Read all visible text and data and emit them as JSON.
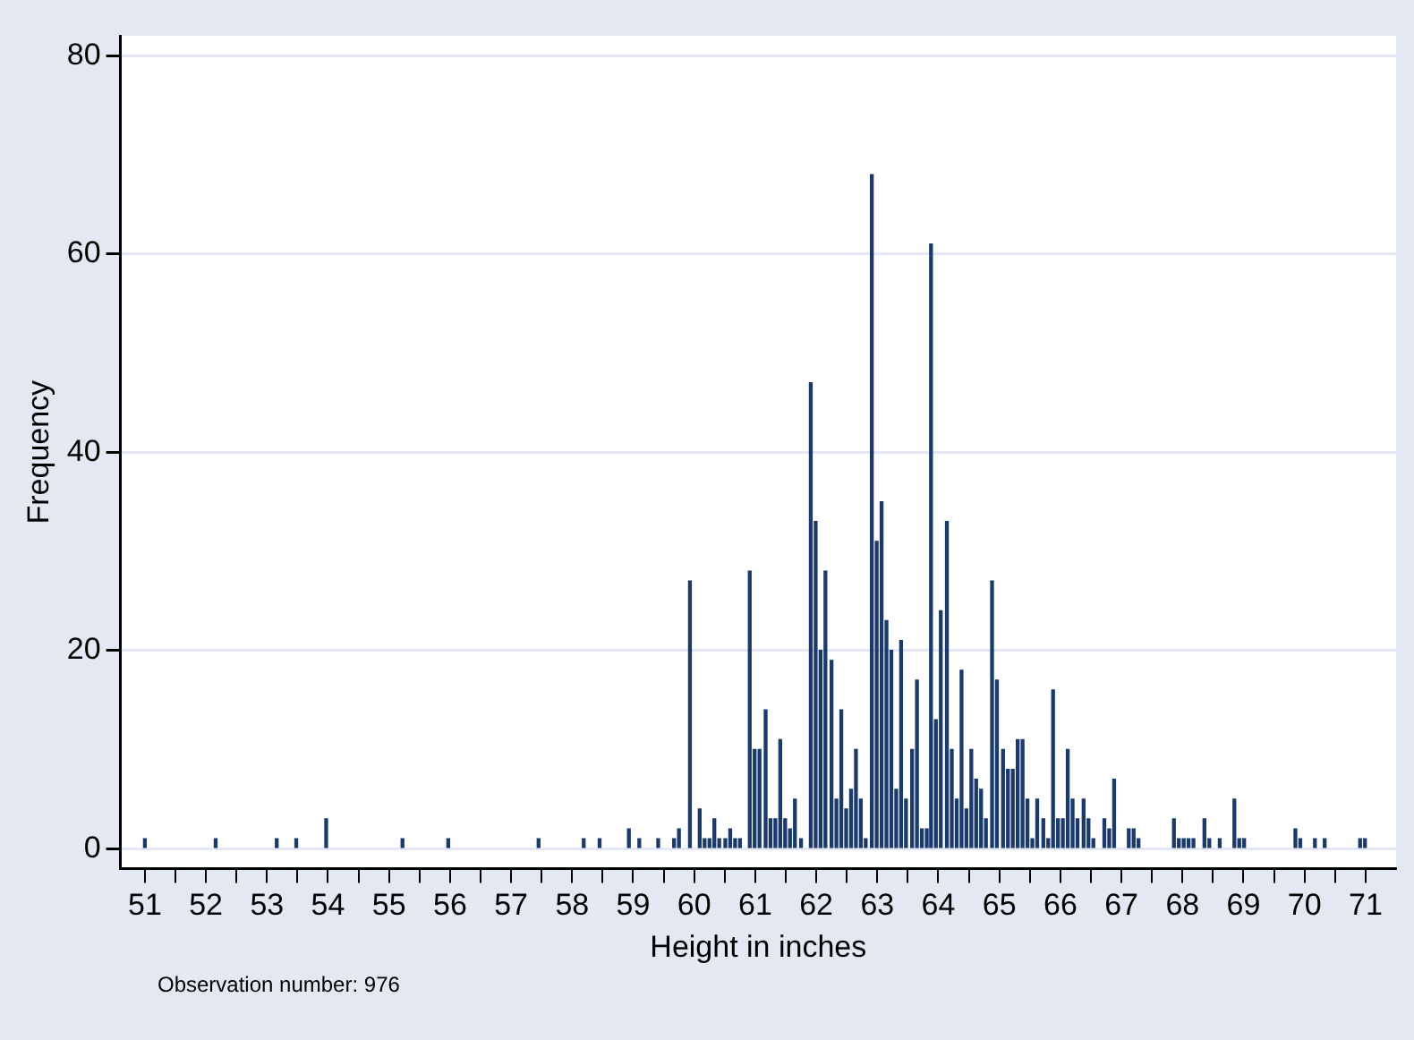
{
  "chart_data": {
    "type": "bar",
    "xlabel": "Height in inches",
    "ylabel": "Frequency",
    "annotations": [
      "Observation number: 976"
    ],
    "x": [
      51.0,
      52.16,
      53.16,
      53.48,
      53.97,
      55.22,
      55.97,
      57.45,
      58.19,
      58.45,
      58.93,
      59.1,
      59.41,
      59.67,
      59.75,
      59.93,
      60.09,
      60.17,
      60.25,
      60.33,
      60.41,
      60.51,
      60.59,
      60.67,
      60.75,
      60.91,
      60.99,
      61.07,
      61.17,
      61.25,
      61.33,
      61.41,
      61.49,
      61.57,
      61.65,
      61.75,
      61.91,
      61.99,
      62.07,
      62.15,
      62.25,
      62.33,
      62.41,
      62.49,
      62.57,
      62.65,
      62.73,
      62.81,
      62.91,
      62.99,
      63.07,
      63.15,
      63.23,
      63.31,
      63.39,
      63.47,
      63.57,
      63.65,
      63.73,
      63.81,
      63.88,
      63.96,
      64.04,
      64.14,
      64.22,
      64.3,
      64.38,
      64.46,
      64.54,
      64.62,
      64.7,
      64.78,
      64.88,
      64.96,
      65.06,
      65.14,
      65.22,
      65.3,
      65.38,
      65.46,
      65.54,
      65.62,
      65.72,
      65.8,
      65.88,
      65.96,
      66.04,
      66.12,
      66.2,
      66.28,
      66.38,
      66.46,
      66.54,
      66.72,
      66.8,
      66.88,
      67.12,
      67.2,
      67.28,
      67.86,
      67.94,
      68.02,
      68.1,
      68.18,
      68.36,
      68.44,
      68.61,
      68.85,
      68.93,
      69.01,
      69.85,
      69.93,
      70.17,
      70.33,
      70.91,
      70.99
    ],
    "values": [
      1,
      1,
      1,
      1,
      3,
      1,
      1,
      1,
      1,
      1,
      2,
      1,
      1,
      1,
      2,
      27,
      4,
      1,
      1,
      3,
      1,
      1,
      2,
      1,
      1,
      28,
      10,
      10,
      14,
      3,
      3,
      11,
      3,
      2,
      5,
      1,
      47,
      33,
      20,
      28,
      19,
      5,
      14,
      4,
      6,
      10,
      5,
      1,
      68,
      31,
      35,
      23,
      20,
      6,
      21,
      5,
      10,
      17,
      2,
      2,
      61,
      13,
      24,
      33,
      10,
      5,
      18,
      4,
      10,
      7,
      6,
      3,
      27,
      17,
      10,
      8,
      8,
      11,
      11,
      5,
      1,
      5,
      3,
      1,
      16,
      3,
      3,
      10,
      5,
      3,
      5,
      3,
      1,
      3,
      2,
      7,
      2,
      2,
      1,
      3,
      1,
      1,
      1,
      1,
      3,
      1,
      1,
      5,
      1,
      1,
      2,
      1,
      1,
      1,
      1,
      1
    ],
    "color": "#1a3a6e",
    "xlim": [
      50.6,
      71.5
    ],
    "xticks": [
      51,
      {
        "value": 51.5,
        "label": null
      },
      52,
      {
        "value": 52.5,
        "label": null
      },
      53,
      {
        "value": 53.5,
        "label": null
      },
      54,
      {
        "value": 54.5,
        "label": null
      },
      55,
      {
        "value": 55.5,
        "label": null
      },
      56,
      {
        "value": 56.5,
        "label": null
      },
      57,
      {
        "value": 57.5,
        "label": null
      },
      58,
      {
        "value": 58.5,
        "label": null
      },
      59,
      {
        "value": 59.5,
        "label": null
      },
      60,
      {
        "value": 60.5,
        "label": null
      },
      61,
      {
        "value": 61.5,
        "label": null
      },
      62,
      {
        "value": 62.5,
        "label": null
      },
      63,
      {
        "value": 63.5,
        "label": null
      },
      64,
      {
        "value": 64.5,
        "label": null
      },
      65,
      {
        "value": 65.5,
        "label": null
      },
      66,
      {
        "value": 66.5,
        "label": null
      },
      67,
      {
        "value": 67.5,
        "label": null
      },
      68,
      {
        "value": 68.5,
        "label": null
      },
      69,
      {
        "value": 69.5,
        "label": null
      },
      70,
      {
        "value": 70.5,
        "label": null
      },
      71
    ],
    "ylim": [
      -2,
      82
    ],
    "yticks": [
      0,
      20,
      40,
      60,
      80
    ],
    "grid": "y",
    "legend": false
  }
}
